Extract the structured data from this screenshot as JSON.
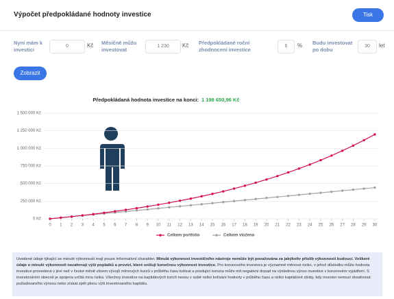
{
  "header": {
    "title": "Výpočet předpokládané hodnoty investice",
    "print_button": "Tisk"
  },
  "form": {
    "fields": [
      {
        "label": "Nyní mám k investici",
        "value": "0",
        "unit": "Kč"
      },
      {
        "label": "Měsíčně můžu investovat",
        "value": "1 230",
        "unit": "Kč"
      },
      {
        "label": "Předpokládané roční zhodnocení investice",
        "value": "6",
        "unit": "%"
      },
      {
        "label": "Budu investovat po dobu",
        "value": "30",
        "unit": "let"
      }
    ],
    "submit": "Zobrazit"
  },
  "chart_data": {
    "type": "line",
    "title": "Předpokládaná hodnota investice na konci:",
    "result": "1 198 650,96 Kč",
    "x": [
      0,
      1,
      2,
      3,
      4,
      5,
      6,
      7,
      8,
      9,
      10,
      11,
      12,
      13,
      14,
      15,
      16,
      17,
      18,
      19,
      20,
      21,
      22,
      23,
      24,
      25,
      26,
      27,
      28,
      29,
      30
    ],
    "series": [
      {
        "name": "Celkem portfolio",
        "color": "#d4114a",
        "values": [
          0,
          15000,
          31000,
          48000,
          66000,
          85000,
          106000,
          127000,
          150000,
          174000,
          200000,
          227000,
          256000,
          286000,
          319000,
          353000,
          389000,
          428000,
          469000,
          512000,
          558000,
          606000,
          658000,
          713000,
          770000,
          832000,
          897000,
          966000,
          1039000,
          1116000,
          1198650.96
        ]
      },
      {
        "name": "Celkem vloženo",
        "color": "#a3a3a3",
        "values": [
          0,
          14760,
          29520,
          44280,
          59040,
          73800,
          88560,
          103320,
          118080,
          132840,
          147600,
          162360,
          177120,
          191880,
          206640,
          221400,
          236160,
          250920,
          265680,
          280440,
          295200,
          309960,
          324720,
          339480,
          354240,
          369000,
          383760,
          398520,
          413280,
          428040,
          442800
        ]
      }
    ],
    "xlim": [
      0,
      30
    ],
    "xticks": [
      0,
      1,
      2,
      3,
      4,
      5,
      6,
      7,
      8,
      9,
      10,
      11,
      12,
      13,
      14,
      15,
      16,
      17,
      18,
      19,
      20,
      21,
      22,
      23,
      24,
      25,
      26,
      27,
      28,
      29,
      30
    ],
    "ylim": [
      0,
      1500000
    ],
    "yticks": [
      {
        "value": 0,
        "label": "0 Kč"
      },
      {
        "value": 250000,
        "label": "250 000 Kč"
      },
      {
        "value": 500000,
        "label": "500 000 Kč"
      },
      {
        "value": 750000,
        "label": "750 000 Kč"
      },
      {
        "value": 1000000,
        "label": "1 000 000 Kč"
      },
      {
        "value": 1250000,
        "label": "1 250 000 Kč"
      },
      {
        "value": 1500000,
        "label": "1 500 000 Kč"
      }
    ],
    "grid": true
  },
  "disclaimer": {
    "intro": "Uvedené údaje týkající se minulé výkonnosti mají pouze informativní charakter.",
    "bold": "Minulá výkonnost investičního nástroje nemůže být považována za jakýkoliv příslib výkonnosti budoucí. Veškeré údaje o minulé výkonnosti nezahrnují výši poplatků a provizí, které snižují konečnou výkonnost investice.",
    "rest": "Pro korunového investora je významné měnové riziko, v jehož důsledku může hodnota investice provedená v jiné než v české měně vlivem vývojů měnových kurzů v průběhu času kolísat a posilující koruna může mít negativní dopad na výslednou výnos investice v korunovém vyjádření. S investováním obecně je spojena určitá míra rizika. Všechny investice na kapitálových trzích nesou v sobě riziko kolísání hodnoty v průběhu času a riziko kapitálové ztráty, kdy investor nemusí dosáhnout požadovaného výnosu nebo získat zpět plnou výši investovaného kapitálu."
  }
}
